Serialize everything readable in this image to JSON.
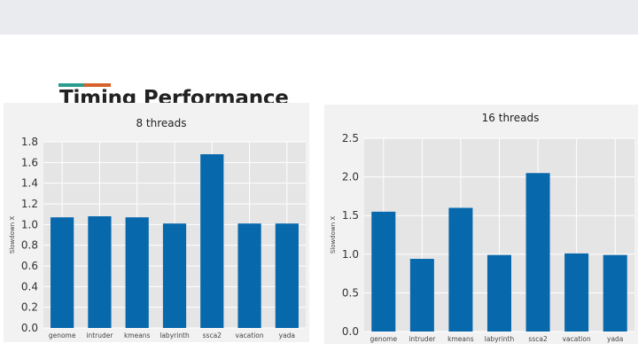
{
  "slide": {
    "title": "Timing Performance",
    "accent_colors": [
      "#2a9d8f",
      "#d4622a"
    ]
  },
  "chart_data": [
    {
      "type": "bar",
      "title": "8 threads",
      "xlabel": "",
      "ylabel": "Slowdown X",
      "ylim": [
        0,
        1.8
      ],
      "yticks": [
        0.0,
        0.2,
        0.4,
        0.6,
        0.8,
        1.0,
        1.2,
        1.4,
        1.6,
        1.8
      ],
      "ytick_labels": [
        "0.0",
        "0.2",
        "0.4",
        "0.6",
        "0.8",
        "1.0",
        "1.2",
        "1.4",
        "1.6",
        "1.8"
      ],
      "categories": [
        "genome",
        "intruder",
        "kmeans",
        "labyrinth",
        "ssca2",
        "vacation",
        "yada"
      ],
      "values": [
        1.07,
        1.08,
        1.07,
        1.01,
        1.68,
        1.01,
        1.01
      ],
      "bar_color": "#0868ac",
      "plot_background": "#e5e5e5",
      "grid": true
    },
    {
      "type": "bar",
      "title": "16 threads",
      "xlabel": "",
      "ylabel": "Slowdown X",
      "ylim": [
        0,
        2.5
      ],
      "yticks": [
        0.0,
        0.5,
        1.0,
        1.5,
        2.0,
        2.5
      ],
      "ytick_labels": [
        "0.0",
        "0.5",
        "1.0",
        "1.5",
        "2.0",
        "2.5"
      ],
      "categories": [
        "genome",
        "intruder",
        "kmeans",
        "labyrinth",
        "ssca2",
        "vacation",
        "yada"
      ],
      "values": [
        1.55,
        0.94,
        1.6,
        0.99,
        2.05,
        1.01,
        0.99
      ],
      "bar_color": "#0868ac",
      "plot_background": "#e5e5e5",
      "grid": true
    }
  ]
}
